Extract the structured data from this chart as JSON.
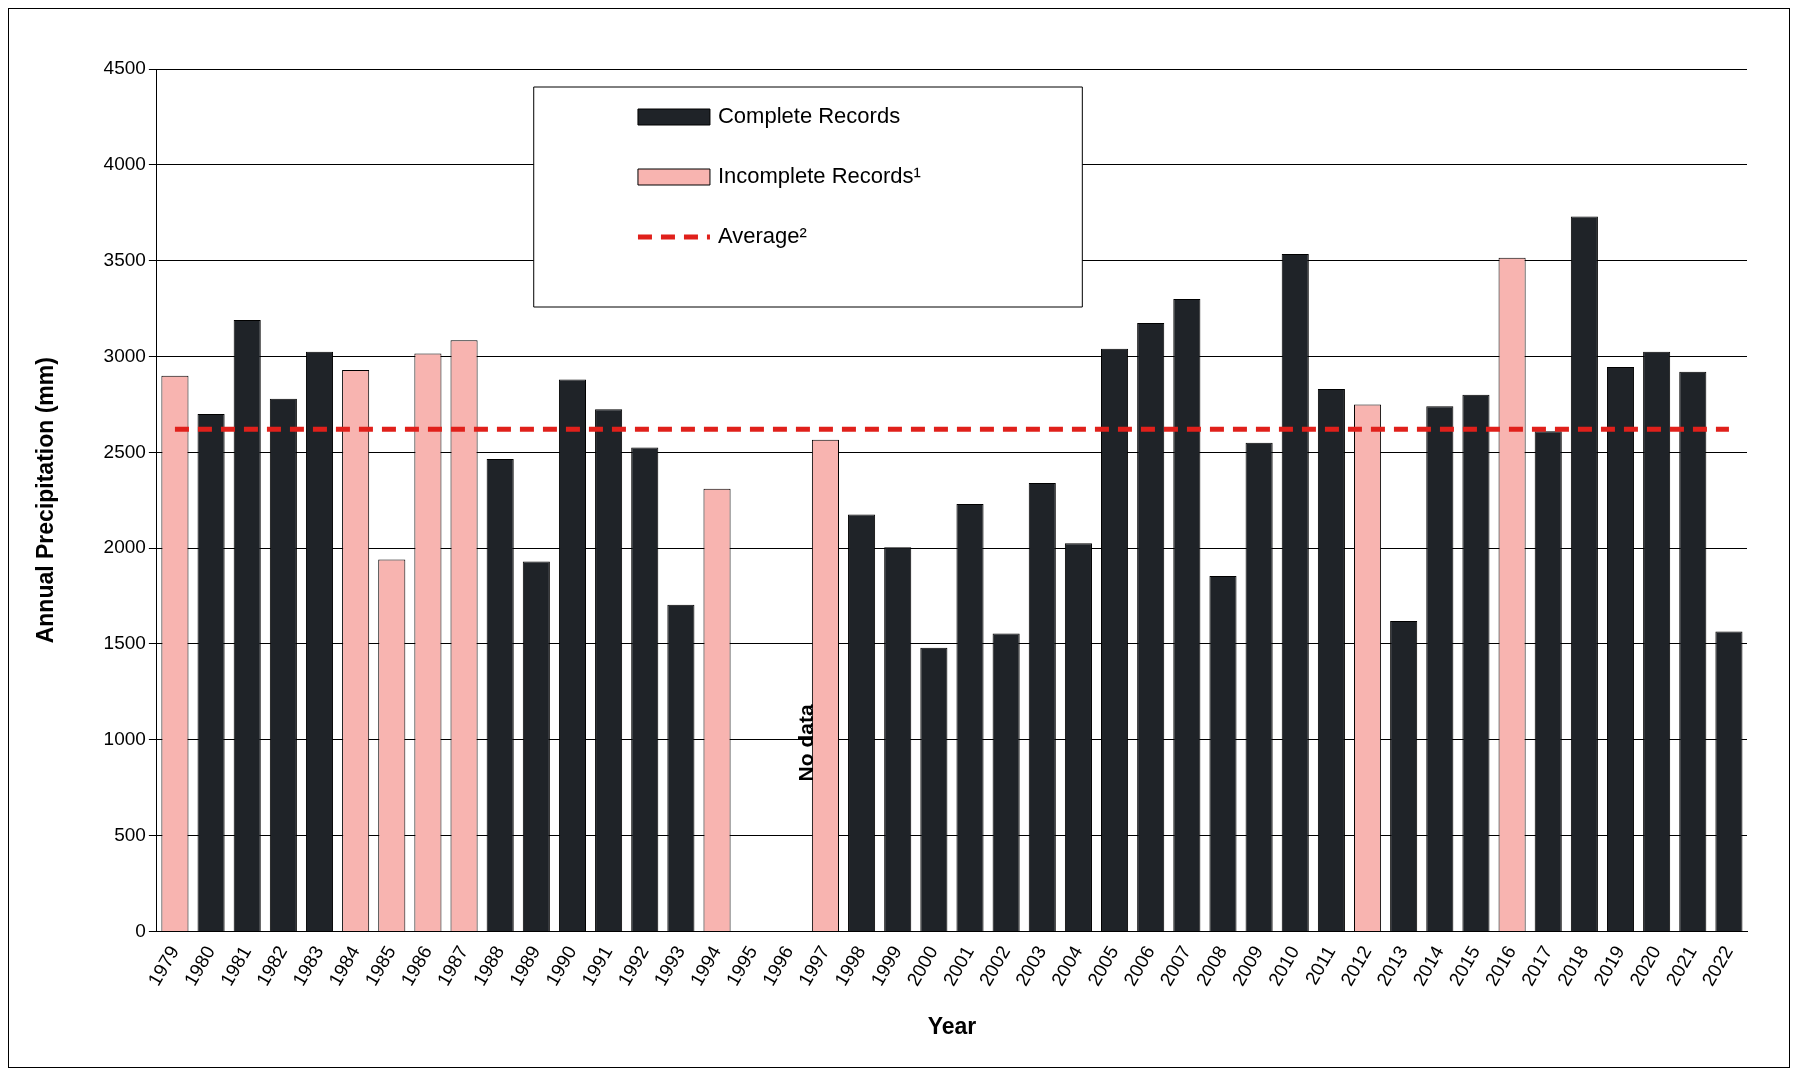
{
  "chart_data": {
    "type": "bar",
    "xlabel": "Year",
    "ylabel": "Annual Precipitation (mm)",
    "categories": [
      "1979",
      "1980",
      "1981",
      "1982",
      "1983",
      "1984",
      "1985",
      "1986",
      "1987",
      "1988",
      "1989",
      "1990",
      "1991",
      "1992",
      "1993",
      "1994",
      "1995",
      "1996",
      "1997",
      "1998",
      "1999",
      "2000",
      "2001",
      "2002",
      "2003",
      "2004",
      "2005",
      "2006",
      "2007",
      "2008",
      "2009",
      "2010",
      "2011",
      "2012",
      "2013",
      "2014",
      "2015",
      "2016",
      "2017",
      "2018",
      "2019",
      "2020",
      "2021",
      "2022"
    ],
    "series": [
      {
        "name": "Complete Records",
        "color": "#1f2328",
        "values": [
          null,
          2700,
          3190,
          2780,
          3025,
          null,
          null,
          null,
          null,
          2465,
          1930,
          2880,
          2725,
          2525,
          1705,
          null,
          null,
          null,
          null,
          2175,
          2005,
          1480,
          2230,
          1555,
          2340,
          2025,
          3040,
          3175,
          3300,
          1855,
          2550,
          3535,
          2830,
          null,
          1620,
          2740,
          2800,
          null,
          2610,
          3730,
          2945,
          3025,
          2920,
          1565
        ]
      },
      {
        "name": "Incomplete Records¹",
        "color": "#f8b4b0",
        "values": [
          2900,
          null,
          null,
          null,
          null,
          2930,
          1940,
          3015,
          3085,
          null,
          null,
          null,
          null,
          null,
          null,
          2310,
          null,
          null,
          2565,
          null,
          null,
          null,
          null,
          null,
          null,
          null,
          null,
          null,
          null,
          null,
          null,
          null,
          null,
          2750,
          null,
          null,
          null,
          3515,
          null,
          null,
          null,
          null,
          null,
          null
        ]
      }
    ],
    "ref_lines": [
      {
        "axis": "y",
        "value": 2620,
        "label": "Average²",
        "color": "#e0201b",
        "line_style": "dashed"
      }
    ],
    "annotations": [
      "No data"
    ],
    "ylim": [
      0,
      4500
    ],
    "yticks": [
      0,
      500,
      1000,
      1500,
      2000,
      2500,
      3000,
      3500,
      4000,
      4500
    ],
    "grid": "y",
    "legend": "top"
  }
}
